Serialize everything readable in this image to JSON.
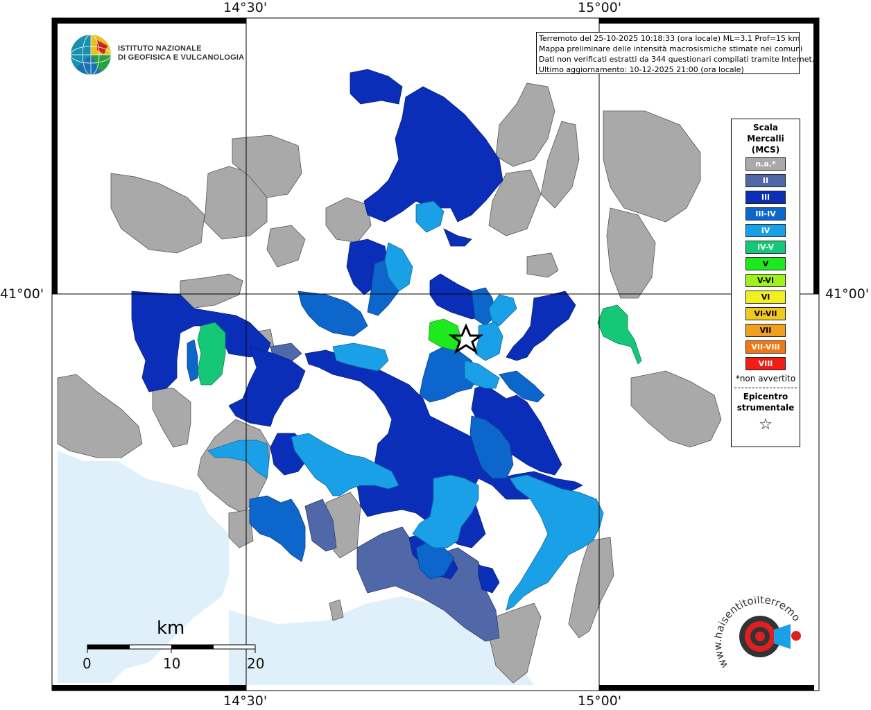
{
  "info_box": {
    "line1": "Terremoto del 25-10-2025 10:18:33 (ora locale) ML=3.1 Prof=15 km",
    "line2": "Mappa preliminare delle intensità macrosismiche stimate nei comuni",
    "line3": "Dati non verificati estratti da 344 questionari compilati tramite Internet.",
    "line4": "Ultimo aggiornamento: 10-12-2025 21:00 (ora locale)"
  },
  "coordinates": {
    "top_left": "14°30'",
    "top_right": "15°00'",
    "bottom_left": "14°30'",
    "bottom_right": "15°00'",
    "left": "41°00'",
    "right": "41°00'"
  },
  "institution": {
    "line1": "ISTITUTO NAZIONALE",
    "line2": "DI GEOFISICA E VULCANOLOGIA"
  },
  "legend": {
    "title_line1": "Scala",
    "title_line2": "Mercalli",
    "title_line3": "(MCS)",
    "items": [
      {
        "label": "n.a.*",
        "color": "#a9a9a9"
      },
      {
        "label": "II",
        "color": "#5067a8"
      },
      {
        "label": "III",
        "color": "#0a2eb8"
      },
      {
        "label": "III-IV",
        "color": "#0d66cc"
      },
      {
        "label": "IV",
        "color": "#1aa0e6"
      },
      {
        "label": "IV-V",
        "color": "#14c878"
      },
      {
        "label": "V",
        "color": "#1ee81e"
      },
      {
        "label": "V-VI",
        "color": "#a0f01e"
      },
      {
        "label": "VI",
        "color": "#f0f01e"
      },
      {
        "label": "VI-VII",
        "color": "#f0c81e"
      },
      {
        "label": "VII",
        "color": "#f0a01e"
      },
      {
        "label": "VII-VIII",
        "color": "#f07814"
      },
      {
        "label": "VIII",
        "color": "#f01e14"
      }
    ],
    "note": "*non avvertito",
    "epicenter_line1": "Epicentro",
    "epicenter_line2": "strumentale",
    "epicenter_symbol": "☆"
  },
  "scale_bar": {
    "unit": "km",
    "ticks": [
      "0",
      "10",
      "20"
    ]
  },
  "colors": {
    "sea": "#e0f0fa",
    "na_gray": "#a9a9a9",
    "land": "#ffffff"
  },
  "watermark": {
    "text": "www.haisentitoilterremoto.it"
  }
}
